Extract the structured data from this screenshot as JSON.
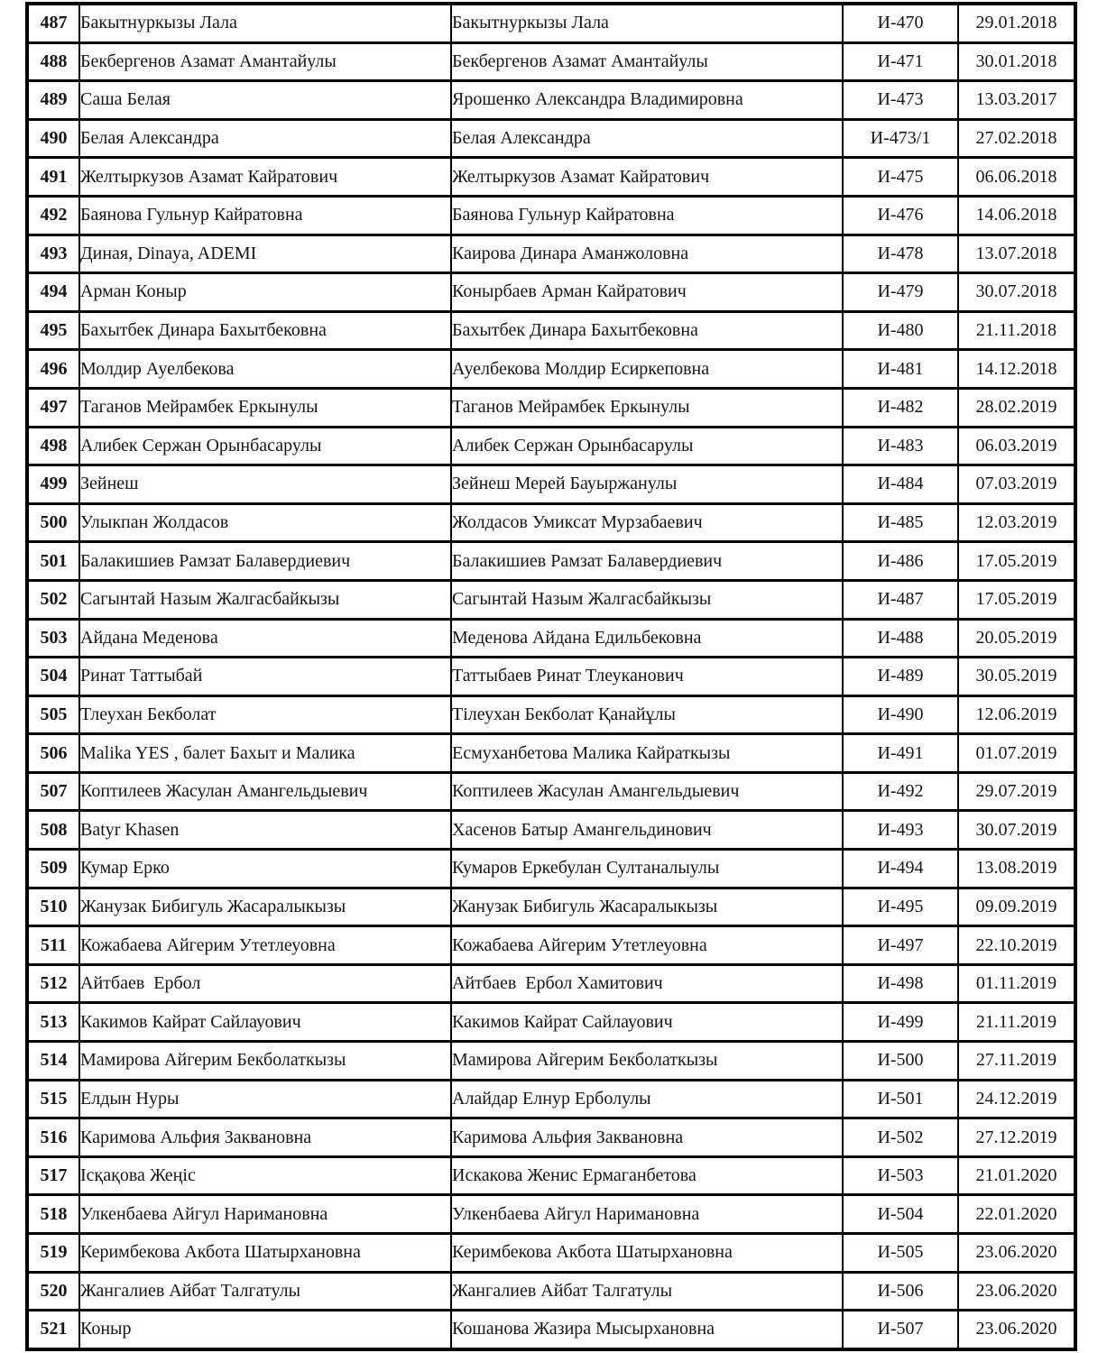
{
  "table": {
    "rows": [
      {
        "num": "487",
        "name1": "Бакытнуркызы Лала",
        "name2": "Бакытнуркызы Лала",
        "code": "И-470",
        "date": "29.01.2018"
      },
      {
        "num": "488",
        "name1": "Бекбергенов Азамат Амантайулы",
        "name2": "Бекбергенов Азамат Амантайулы",
        "code": "И-471",
        "date": "30.01.2018"
      },
      {
        "num": "489",
        "name1": "Саша Белая",
        "name2": "Ярошенко Александра Владимировна",
        "code": "И-473",
        "date": "13.03.2017"
      },
      {
        "num": "490",
        "name1": "Белая Александра",
        "name2": "Белая Александра",
        "code": "И-473/1",
        "date": "27.02.2018"
      },
      {
        "num": "491",
        "name1": "Желтыркузов Азамат Кайратович",
        "name2": "Желтыркузов Азамат Кайратович",
        "code": "И-475",
        "date": "06.06.2018"
      },
      {
        "num": "492",
        "name1": "Баянова Гульнур Кайратовна",
        "name2": "Баянова Гульнур Кайратовна",
        "code": "И-476",
        "date": "14.06.2018"
      },
      {
        "num": "493",
        "name1": "Диная, Dinaya, ADEMI",
        "name2": "Каирова Динара Аманжоловна",
        "code": "И-478",
        "date": "13.07.2018"
      },
      {
        "num": "494",
        "name1": "Арман Коныр",
        "name2": "Конырбаев Арман Кайратович",
        "code": "И-479",
        "date": "30.07.2018"
      },
      {
        "num": "495",
        "name1": "Бахытбек Динара Бахытбековна",
        "name2": "Бахытбек Динара Бахытбековна",
        "code": "И-480",
        "date": "21.11.2018"
      },
      {
        "num": "496",
        "name1": "Молдир Ауелбекова",
        "name2": "Ауелбекова Молдир Есиркеповна",
        "code": "И-481",
        "date": "14.12.2018"
      },
      {
        "num": "497",
        "name1": "Таганов Мейрамбек Еркынулы",
        "name2": "Таганов Мейрамбек Еркынулы",
        "code": "И-482",
        "date": "28.02.2019"
      },
      {
        "num": "498",
        "name1": "Алибек Сержан Орынбасарулы",
        "name2": "Алибек Сержан Орынбасарулы",
        "code": "И-483",
        "date": "06.03.2019"
      },
      {
        "num": "499",
        "name1": "Зейнеш",
        "name2": "Зейнеш Мерей Бауыржанулы",
        "code": "И-484",
        "date": "07.03.2019"
      },
      {
        "num": "500",
        "name1": "Улыкпан Жолдасов",
        "name2": "Жолдасов Умиксат Мурзабаевич",
        "code": "И-485",
        "date": "12.03.2019"
      },
      {
        "num": "501",
        "name1": "Балакишиев Рамзат Балавердиевич",
        "name2": "Балакишиев Рамзат Балавердиевич",
        "code": "И-486",
        "date": "17.05.2019"
      },
      {
        "num": "502",
        "name1": "Сагынтай Назым Жалгасбайкызы",
        "name2": "Сагынтай Назым Жалгасбайкызы",
        "code": "И-487",
        "date": "17.05.2019"
      },
      {
        "num": "503",
        "name1": "Айдана Меденова",
        "name2": "Меденова Айдана Едильбековна",
        "code": "И-488",
        "date": "20.05.2019"
      },
      {
        "num": "504",
        "name1": "Ринат Таттыбай",
        "name2": "Таттыбаев Ринат Тлеуканович",
        "code": "И-489",
        "date": "30.05.2019"
      },
      {
        "num": "505",
        "name1": "Тлеухан Бекболат",
        "name2": "Тілеухан Бекболат Қанайұлы",
        "code": "И-490",
        "date": "12.06.2019"
      },
      {
        "num": "506",
        "name1": "Malika YES , балет Бахыт и Малика",
        "name2": "Есмуханбетова Малика Кайраткызы",
        "code": "И-491",
        "date": "01.07.2019"
      },
      {
        "num": "507",
        "name1": "Коптилеев Жасулан Амангельдыевич",
        "name2": "Коптилеев Жасулан Амангельдыевич",
        "code": "И-492",
        "date": "29.07.2019"
      },
      {
        "num": "508",
        "name1": "Batyr Khasen",
        "name2": "Хасенов Батыр Амангельдинович",
        "code": "И-493",
        "date": "30.07.2019"
      },
      {
        "num": "509",
        "name1": "Кумар Ерко",
        "name2": "Кумаров Еркебулан Султаналыулы",
        "code": "И-494",
        "date": "13.08.2019"
      },
      {
        "num": "510",
        "name1": "Жанузак Бибигуль Жасаралыкызы",
        "name2": "Жанузак Бибигуль Жасаралыкызы",
        "code": "И-495",
        "date": "09.09.2019"
      },
      {
        "num": "511",
        "name1": "Кожабаева Айгерим Утетлеуовна",
        "name2": "Кожабаева Айгерим Утетлеуовна",
        "code": "И-497",
        "date": "22.10.2019"
      },
      {
        "num": "512",
        "name1": "Айтбаев  Ербол",
        "name2": "Айтбаев  Ербол Хамитович",
        "code": "И-498",
        "date": "01.11.2019"
      },
      {
        "num": "513",
        "name1": "Какимов Кайрат Сайлауович",
        "name2": "Какимов Кайрат Сайлауович",
        "code": "И-499",
        "date": "21.11.2019"
      },
      {
        "num": "514",
        "name1": "Мамирова Айгерим Бекболаткызы",
        "name2": "Мамирова Айгерим Бекболаткызы",
        "code": "И-500",
        "date": "27.11.2019"
      },
      {
        "num": "515",
        "name1": "Елдын Нуры",
        "name2": "Алайдар Елнур Ерболулы",
        "code": "И-501",
        "date": "24.12.2019"
      },
      {
        "num": "516",
        "name1": "Каримова Альфия Заквановна",
        "name2": "Каримова Альфия Заквановна",
        "code": "И-502",
        "date": "27.12.2019"
      },
      {
        "num": "517",
        "name1": "Ісқақова Жеңіс",
        "name2": "Искакова Женис Ермаганбетова",
        "code": "И-503",
        "date": "21.01.2020"
      },
      {
        "num": "518",
        "name1": "Улкенбаева Айгул Наримановна",
        "name2": "Улкенбаева Айгул Наримановна",
        "code": "И-504",
        "date": "22.01.2020"
      },
      {
        "num": "519",
        "name1": "Керимбекова Акбота Шатырхановна",
        "name2": "Керимбекова Акбота Шатырхановна",
        "code": "И-505",
        "date": "23.06.2020"
      },
      {
        "num": "520",
        "name1": "Жангалиев Айбат Талгатулы",
        "name2": "Жангалиев Айбат Талгатулы",
        "code": "И-506",
        "date": "23.06.2020"
      },
      {
        "num": "521",
        "name1": "Коныр",
        "name2": "Кошанова Жазира Мысырхановна",
        "code": "И-507",
        "date": "23.06.2020"
      }
    ]
  }
}
